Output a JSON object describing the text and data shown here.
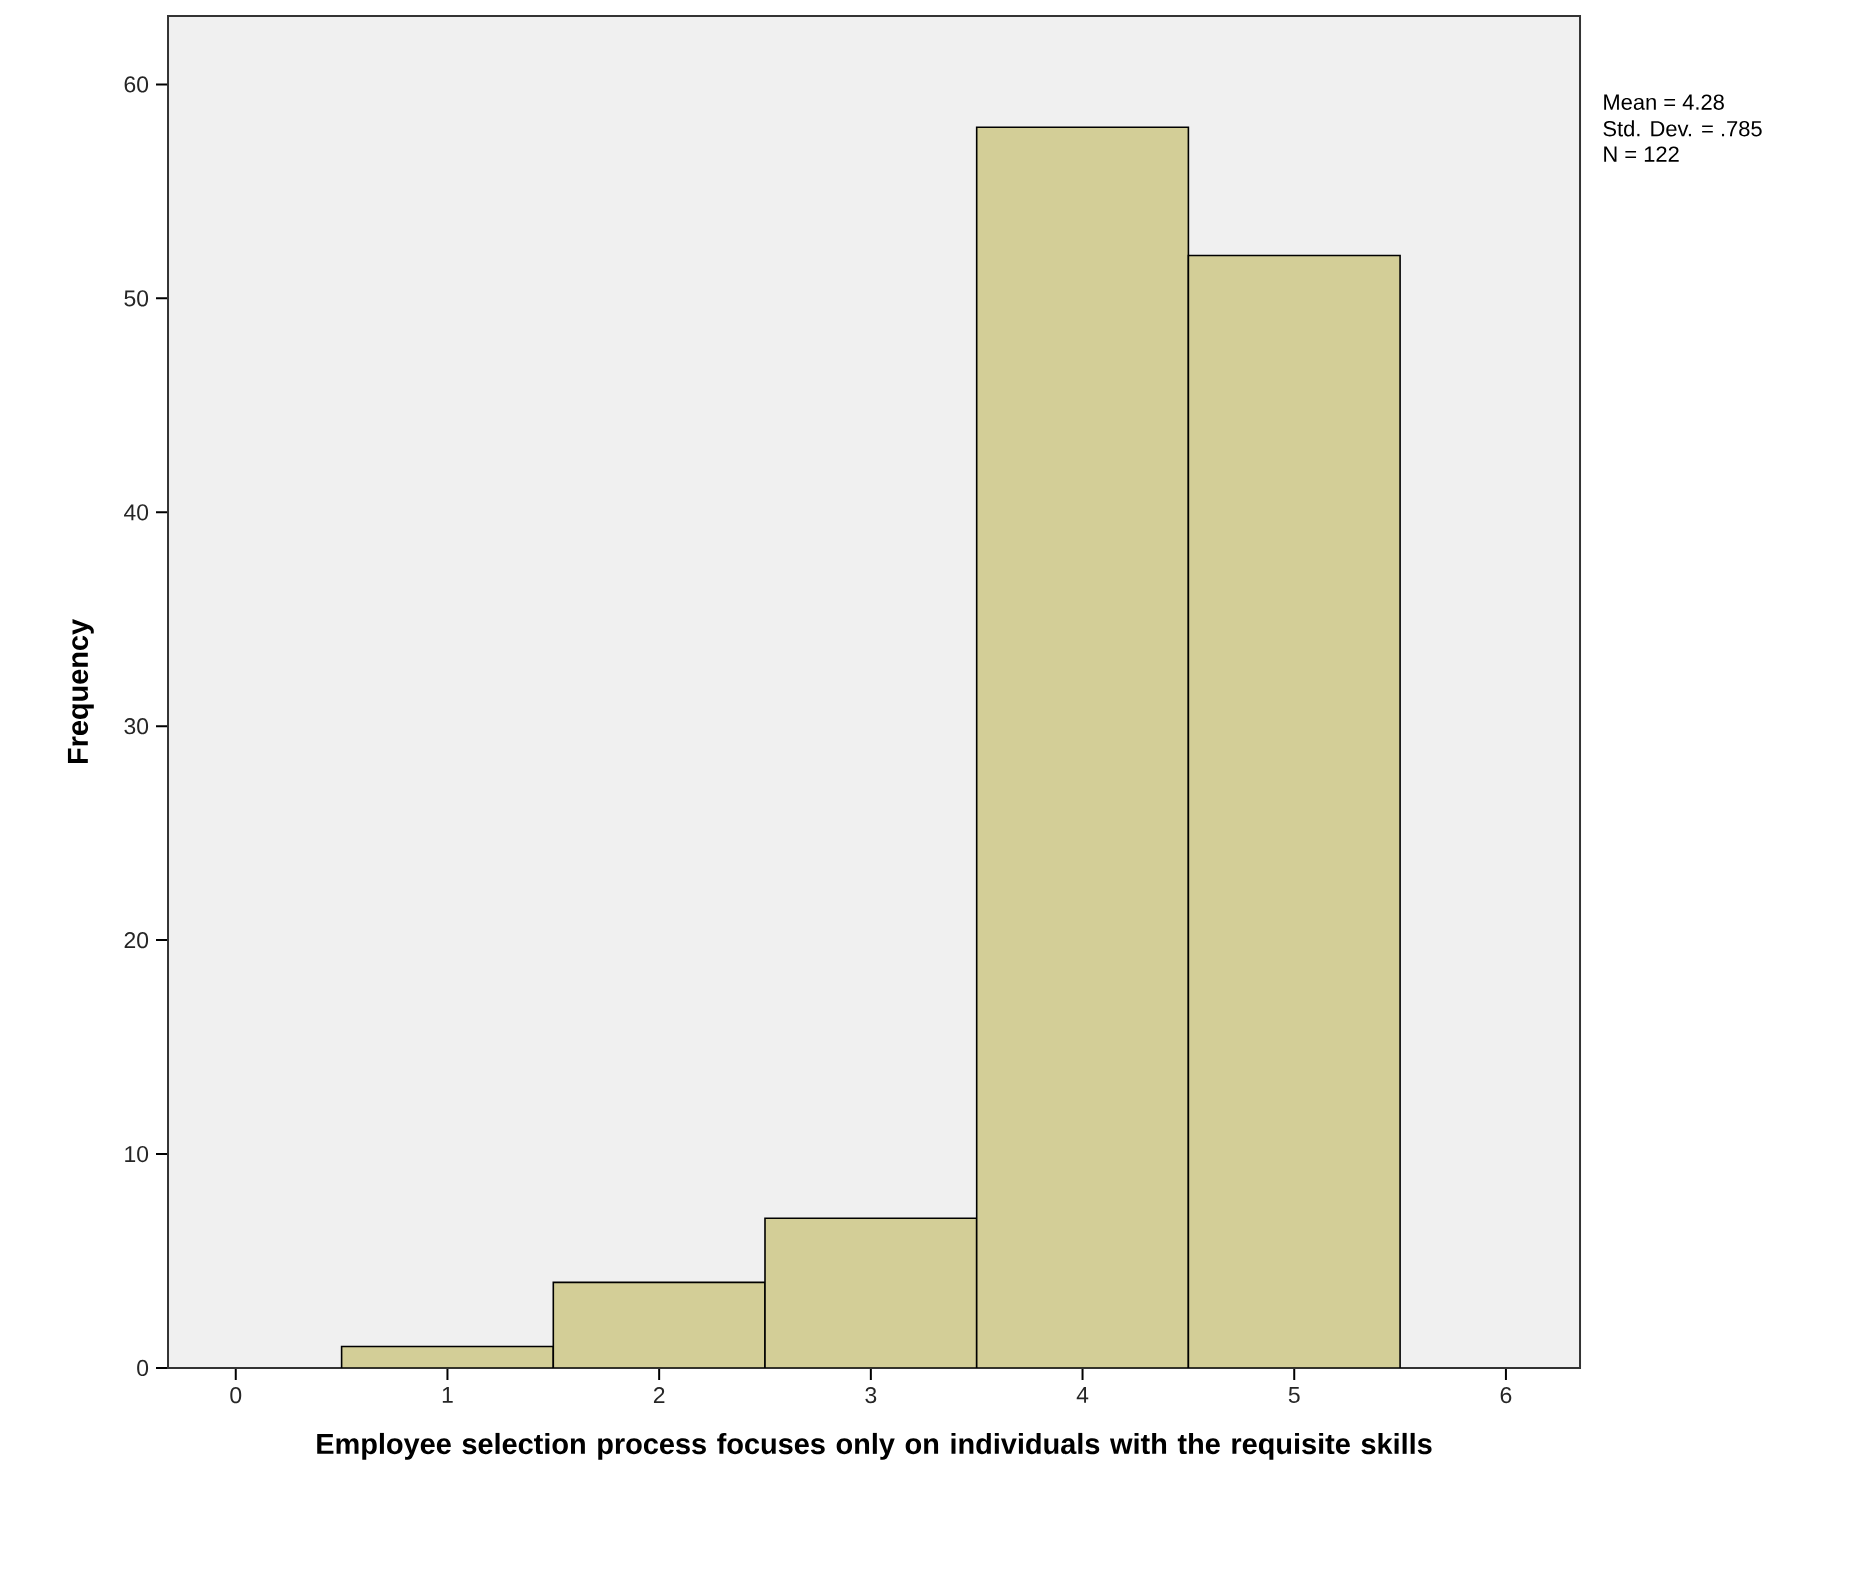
{
  "chart_data": {
    "type": "histogram",
    "xlabel": "Employee selection process focuses only on individuals with the requisite skills",
    "ylabel": "Frequency",
    "bins": [
      0.5,
      1.5,
      2.5,
      3.5,
      4.5,
      5.5
    ],
    "values": [
      1,
      4,
      7,
      58,
      52
    ],
    "color": "#d3ce97",
    "xlim": [
      -0.32,
      6.35
    ],
    "ylim": [
      0,
      63.2
    ],
    "xticks": [
      0,
      1,
      2,
      3,
      4,
      5,
      6
    ],
    "yticks": [
      0,
      10,
      20,
      30,
      40,
      50,
      60
    ],
    "grid": false,
    "annotations": [
      "Mean = 4.28",
      "Std. Dev. = .785",
      "N = 122"
    ]
  }
}
